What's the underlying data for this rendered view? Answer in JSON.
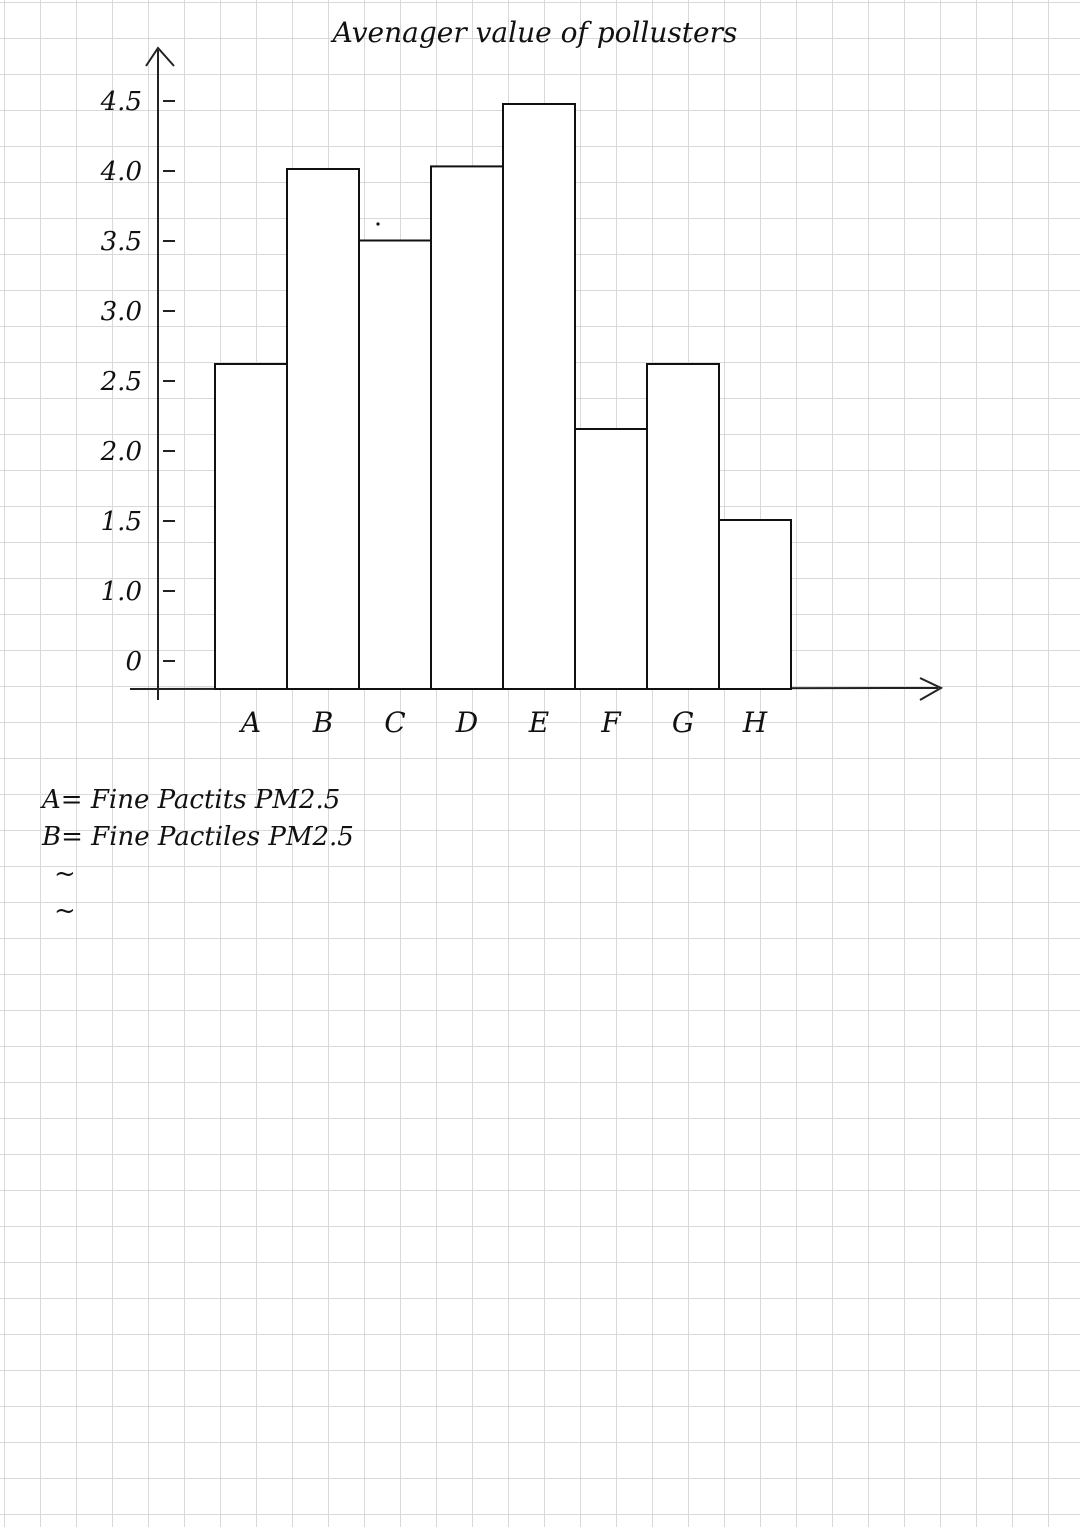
{
  "chart_data": {
    "type": "bar",
    "title": "Avenager value of pollusters",
    "categories": [
      "A",
      "B",
      "C",
      "D",
      "E",
      "F",
      "G",
      "H"
    ],
    "values": [
      2.5,
      4.0,
      3.45,
      4.02,
      4.5,
      2.0,
      2.5,
      1.3
    ],
    "y_tick_labels": [
      "0",
      "1.0",
      "1.5",
      "2.0",
      "2.5",
      "3.0",
      "3.5",
      "4.0",
      "4.5"
    ],
    "ylim": [
      0,
      4.5
    ],
    "grid": true,
    "legend_position": "bottom-left",
    "bar_fill": "#ffffff",
    "bar_stroke": "#111111"
  },
  "legend": {
    "lines": [
      {
        "key": "A",
        "sep": "=",
        "text": "Fine Pactits PM2.5"
      },
      {
        "key": "B",
        "sep": "=",
        "text": "Fine Pactiles PM2.5"
      }
    ],
    "continuation": [
      "~",
      "~"
    ]
  }
}
